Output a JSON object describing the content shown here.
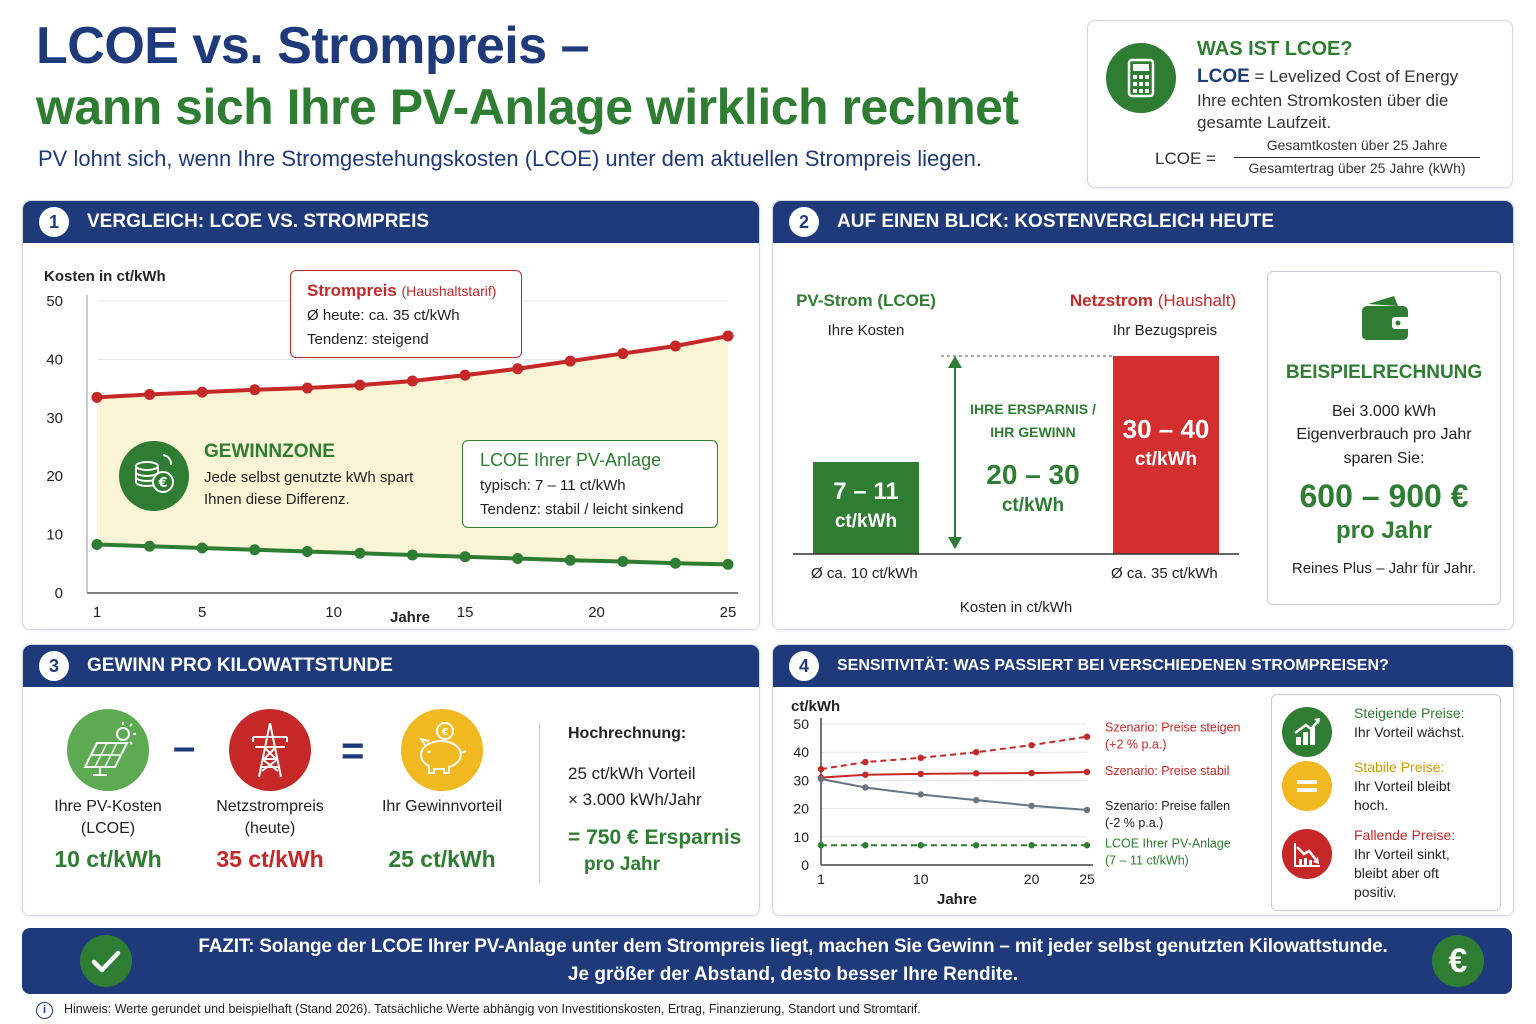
{
  "header": {
    "title_line1": "LCOE vs. Strompreis –",
    "title_line2": "wann sich Ihre PV-Anlage wirklich rechnet",
    "subtitle": "PV lohnt sich, wenn Ihre Stromgestehungskosten (LCOE) unter dem aktuellen Strompreis liegen."
  },
  "info_box": {
    "title": "WAS IST LCOE?",
    "term": "LCOE",
    "definition_line1": "= Levelized Cost of Energy",
    "definition_line2": "Ihre echten Stromkosten über die",
    "definition_line3": "gesamte Laufzeit.",
    "formula_left": "LCOE =",
    "formula_numerator": "Gesamtkosten über 25 Jahre",
    "formula_denominator": "Gesamtertrag über 25 Jahre (kWh)"
  },
  "panel1": {
    "number": "1",
    "title": "VERGLEICH: LCOE VS. STROMPREIS",
    "strompreis_label": "Strompreis",
    "strompreis_sub": "(Haushaltstarif)",
    "strompreis_line1": "Ø heute: ca. 35 ct/kWh",
    "strompreis_line2": "Tendenz: steigend",
    "gewinnzone_title": "GEWINNZONE",
    "gewinnzone_line1": "Jede selbst genutzte kWh spart",
    "gewinnzone_line2": "Ihnen diese Differenz.",
    "lcoe_title": "LCOE Ihrer PV-Anlage",
    "lcoe_line1": "typisch: 7 – 11 ct/kWh",
    "lcoe_line2": "Tendenz: stabil / leicht sinkend"
  },
  "panel2": {
    "number": "2",
    "title": "AUF EINEN BLICK: KOSTENVERGLEICH HEUTE",
    "pv_label": "PV-Strom (LCOE)",
    "pv_sub": "Ihre Kosten",
    "net_label": "Netzstrom",
    "net_label_sub": "(Haushalt)",
    "net_sub": "Ihr Bezugspreis",
    "pv_bar_line1": "7 – 11",
    "pv_bar_line2": "ct/kWh",
    "net_bar_line1": "30 – 40",
    "net_bar_line2": "ct/kWh",
    "savings_label_line1": "IHRE ERSPARNIS /",
    "savings_label_line2": "IHR GEWINN",
    "savings_value_line1": "20 – 30",
    "savings_value_line2": "ct/kWh",
    "pv_avg": "Ø ca. 10 ct/kWh",
    "net_avg": "Ø ca. 35 ct/kWh",
    "axis_label": "Kosten in ct/kWh",
    "example_title": "BEISPIELRECHNUNG",
    "example_line1": "Bei 3.000 kWh",
    "example_line2": "Eigenverbrauch pro Jahr",
    "example_line3": "sparen Sie:",
    "example_value": "600 – 900 €",
    "example_value_sub": "pro Jahr",
    "example_footer": "Reines Plus – Jahr für Jahr."
  },
  "panel3": {
    "number": "3",
    "title": "GEWINN PRO KILOWATTSTUNDE",
    "minus": "–",
    "equals": "=",
    "pv_label_line1": "Ihre PV-Kosten",
    "pv_label_line2": "(LCOE)",
    "pv_value": "10 ct/kWh",
    "net_label_line1": "Netzstrompreis",
    "net_label_line2": "(heute)",
    "net_value": "35 ct/kWh",
    "gain_label": "Ihr Gewinnvorteil",
    "gain_value": "25 ct/kWh",
    "calc_title": "Hochrechnung:",
    "calc_line1": "25 ct/kWh Vorteil",
    "calc_line2": "× 3.000 kWh/Jahr",
    "calc_result_line1": "= 750 € Ersparnis",
    "calc_result_line2": "pro Jahr"
  },
  "panel4": {
    "number": "4",
    "title": "SENSITIVITÄT: WAS PASSIERT BEI VERSCHIEDENEN STROMPREISEN?",
    "legend": [
      {
        "title": "Steigende Preise:",
        "line1": "Ihr Vorteil wächst.",
        "line2": "",
        "line3": "",
        "color": "#2e7d32",
        "icon": "chart-up-icon"
      },
      {
        "title": "Stabile Preise:",
        "line1": "Ihr Vorteil bleibt",
        "line2": "hoch.",
        "line3": "",
        "color": "#f2b820",
        "icon": "equals-icon"
      },
      {
        "title": "Fallende Preise:",
        "line1": "Ihr Vorteil sinkt,",
        "line2": "bleibt aber oft",
        "line3": "positiv.",
        "color": "#c62828",
        "icon": "chart-down-icon"
      }
    ]
  },
  "footer": {
    "fazit_line1": "FAZIT: Solange der LCOE Ihrer PV-Anlage unter dem Strompreis liegt, machen Sie Gewinn – mit jeder selbst genutzten Kilowattstunde.",
    "fazit_line2": "Je größer der Abstand, desto besser Ihre Rendite.",
    "euro": "€",
    "note": "Hinweis: Werte gerundet und beispielhaft (Stand 2026). Tatsächliche Werte abhängig von Investitionskosten, Ertrag, Finanzierung, Standort und Stromtarif."
  },
  "chart_data": [
    {
      "type": "line",
      "ylabel": "Kosten in ct/kWh",
      "xlabel": "Jahre",
      "ylim": [
        0,
        50
      ],
      "xlim": [
        1,
        25
      ],
      "yticks": [
        0,
        10,
        20,
        30,
        40,
        50
      ],
      "xticks": [
        1,
        5,
        10,
        15,
        20,
        25
      ],
      "x": [
        1,
        3,
        5,
        7,
        9,
        11,
        13,
        15,
        17,
        19,
        21,
        23,
        25
      ],
      "series": [
        {
          "color": "#c62828",
          "values": [
            33.5,
            34.0,
            34.4,
            34.8,
            35.1,
            35.6,
            36.3,
            37.3,
            38.4,
            39.7,
            41.0,
            42.3,
            44.0
          ]
        },
        {
          "color": "#2e7d32",
          "values": [
            8.3,
            8.0,
            7.7,
            7.4,
            7.1,
            6.8,
            6.5,
            6.2,
            5.9,
            5.6,
            5.4,
            5.1,
            4.9
          ]
        }
      ],
      "fill_between": true,
      "grid": true
    },
    {
      "type": "line",
      "ylabel": "ct/kWh",
      "xlabel": "Jahre",
      "ylim": [
        0,
        50
      ],
      "xlim": [
        1,
        25
      ],
      "yticks": [
        0,
        10,
        20,
        30,
        40,
        50
      ],
      "xticks": [
        1,
        10,
        20,
        25
      ],
      "x": [
        1,
        5,
        10,
        15,
        20,
        25
      ],
      "series": [
        {
          "name": "Szenario: Preise steigen",
          "name_line2": "(+2 % p.a.)",
          "color": "#c62828",
          "dash": "6,4",
          "values": [
            34,
            36.5,
            38,
            40,
            42.5,
            45.5
          ]
        },
        {
          "name": "Szenario: Preise stabil",
          "name_line2": "",
          "color": "#c62828",
          "dash": "",
          "values": [
            31,
            32,
            32.3,
            32.5,
            32.6,
            33
          ]
        },
        {
          "name": "Szenario: Preise fallen",
          "name_line2": "(-2 % p.a.)",
          "color": "#6b7280",
          "dash": "",
          "values": [
            30.5,
            27.5,
            25,
            23,
            21,
            19.5
          ]
        },
        {
          "name": "LCOE Ihrer PV-Anlage",
          "name_line2": "(7 – 11 ct/kWh)",
          "color": "#2e7d32",
          "dash": "6,4",
          "values": [
            7,
            7,
            7,
            7,
            7,
            7
          ]
        }
      ],
      "grid": true
    }
  ]
}
